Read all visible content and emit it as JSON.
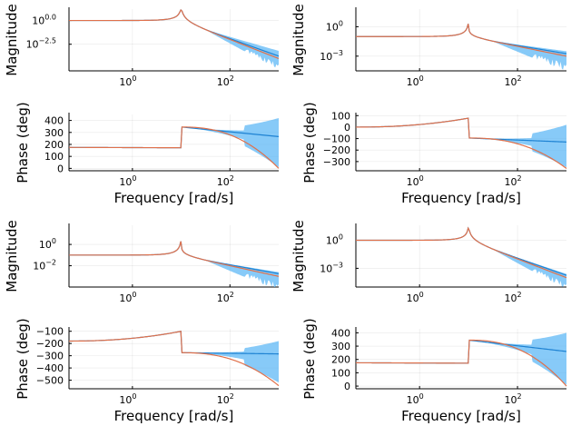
{
  "colors": {
    "band": "#5fb8f5",
    "nominal": "#1e82d2",
    "truth": "#e0704a"
  },
  "chart_data": [
    {
      "id": "sys1",
      "type": "line",
      "x_scale": "log",
      "xlim": [
        0.05,
        1000
      ],
      "x_ticks": [
        {
          "v": 1,
          "label": "10",
          "sup": "0"
        },
        {
          "v": 100,
          "label": "10",
          "sup": "2"
        }
      ],
      "magnitude": {
        "ylabel": "Magnitude",
        "y_scale": "log",
        "ylim": [
          -5.3,
          1.2
        ],
        "y_ticks": [
          {
            "v": 0,
            "label": "10",
            "sup": "0.0"
          },
          {
            "v": -2.5,
            "label": "10",
            "sup": "−2.5"
          }
        ],
        "resonance_w": 10,
        "low_gain_log10": 0,
        "peak_log10": 1.1,
        "hf_slope": -2,
        "hf_end_log10": -4.0,
        "band_hi_end": -3.2,
        "band_lo_end": -5.2
      },
      "phase": {
        "ylabel": "Phase (deg)",
        "xlabel": "Frequency [rad/s]",
        "ylim": [
          -20,
          450
        ],
        "y_ticks": [
          0,
          100,
          200,
          300,
          400
        ],
        "low_deg": 175,
        "jump_w": 10,
        "after_jump_deg": 345,
        "nominal_end_deg": 265,
        "truth_end_deg": 0,
        "band_hi_end": 420,
        "band_lo_end": 10
      }
    },
    {
      "id": "sys2",
      "type": "line",
      "x_scale": "log",
      "xlim": [
        0.05,
        1000
      ],
      "x_ticks": [
        {
          "v": 1,
          "label": "10",
          "sup": "0"
        },
        {
          "v": 100,
          "label": "10",
          "sup": "2"
        }
      ],
      "magnitude": {
        "ylabel": "Magnitude",
        "y_scale": "log",
        "ylim": [
          -4.5,
          1.8
        ],
        "y_ticks": [
          {
            "v": 0,
            "label": "10",
            "sup": "0"
          },
          {
            "v": -3,
            "label": "10",
            "sup": "−3"
          }
        ],
        "resonance_w": 10,
        "low_gain_log10": -1.0,
        "peak_log10": 1.6,
        "hf_slope": -1,
        "hf_end_log10": -1.7,
        "band_hi_end": -1.2,
        "band_lo_end": -3.3
      },
      "phase": {
        "ylabel": "Phase (deg)",
        "xlabel": "Frequency [rad/s]",
        "ylim": [
          -380,
          110
        ],
        "y_ticks": [
          100,
          0,
          -100,
          -200,
          -300
        ],
        "low_deg": 0,
        "rise_to_deg": 78,
        "jump_w": 10,
        "after_jump_deg": -95,
        "nominal_end_deg": -130,
        "truth_end_deg": -360,
        "band_hi_end": 20,
        "band_lo_end": -350
      }
    },
    {
      "id": "sys3",
      "type": "line",
      "x_scale": "log",
      "xlim": [
        0.05,
        1000
      ],
      "x_ticks": [
        {
          "v": 1,
          "label": "10",
          "sup": "0"
        },
        {
          "v": 100,
          "label": "10",
          "sup": "2"
        }
      ],
      "magnitude": {
        "ylabel": "Magnitude",
        "y_scale": "log",
        "ylim": [
          -4.0,
          1.8
        ],
        "y_ticks": [
          {
            "v": 0,
            "label": "10",
            "sup": "0"
          },
          {
            "v": -2,
            "label": "10",
            "sup": "−2"
          }
        ],
        "resonance_w": 10,
        "low_gain_log10": -1.0,
        "peak_log10": 1.4,
        "hf_slope": -1,
        "hf_end_log10": -2.2,
        "band_hi_end": -1.8,
        "band_lo_end": -3.6
      },
      "phase": {
        "ylabel": "Phase (deg)",
        "xlabel": "Frequency [rad/s]",
        "ylim": [
          -570,
          -80
        ],
        "y_ticks": [
          -100,
          -200,
          -300,
          -400,
          -500
        ],
        "low_deg": -180,
        "rise_to_deg": -100,
        "jump_w": 10,
        "after_jump_deg": -275,
        "nominal_end_deg": -285,
        "truth_end_deg": -545,
        "band_hi_end": -180,
        "band_lo_end": -520
      }
    },
    {
      "id": "sys4",
      "type": "line",
      "x_scale": "log",
      "xlim": [
        0.05,
        1000
      ],
      "x_ticks": [
        {
          "v": 1,
          "label": "10",
          "sup": "0"
        },
        {
          "v": 100,
          "label": "10",
          "sup": "2"
        }
      ],
      "magnitude": {
        "ylabel": "Magnitude",
        "y_scale": "log",
        "ylim": [
          -5.0,
          1.6
        ],
        "y_ticks": [
          {
            "v": 0,
            "label": "10",
            "sup": "0"
          },
          {
            "v": -3,
            "label": "10",
            "sup": "−3"
          }
        ],
        "resonance_w": 10,
        "low_gain_log10": 0,
        "peak_log10": 1.3,
        "hf_slope": -2,
        "hf_end_log10": -3.7,
        "band_hi_end": -3.3,
        "band_lo_end": -5.0
      },
      "phase": {
        "ylabel": "Phase (deg)",
        "xlabel": "Frequency [rad/s]",
        "ylim": [
          -20,
          430
        ],
        "y_ticks": [
          0,
          100,
          200,
          300,
          400
        ],
        "low_deg": 175,
        "jump_w": 10,
        "after_jump_deg": 345,
        "nominal_end_deg": 260,
        "truth_end_deg": 0,
        "band_hi_end": 400,
        "band_lo_end": 10
      }
    }
  ]
}
